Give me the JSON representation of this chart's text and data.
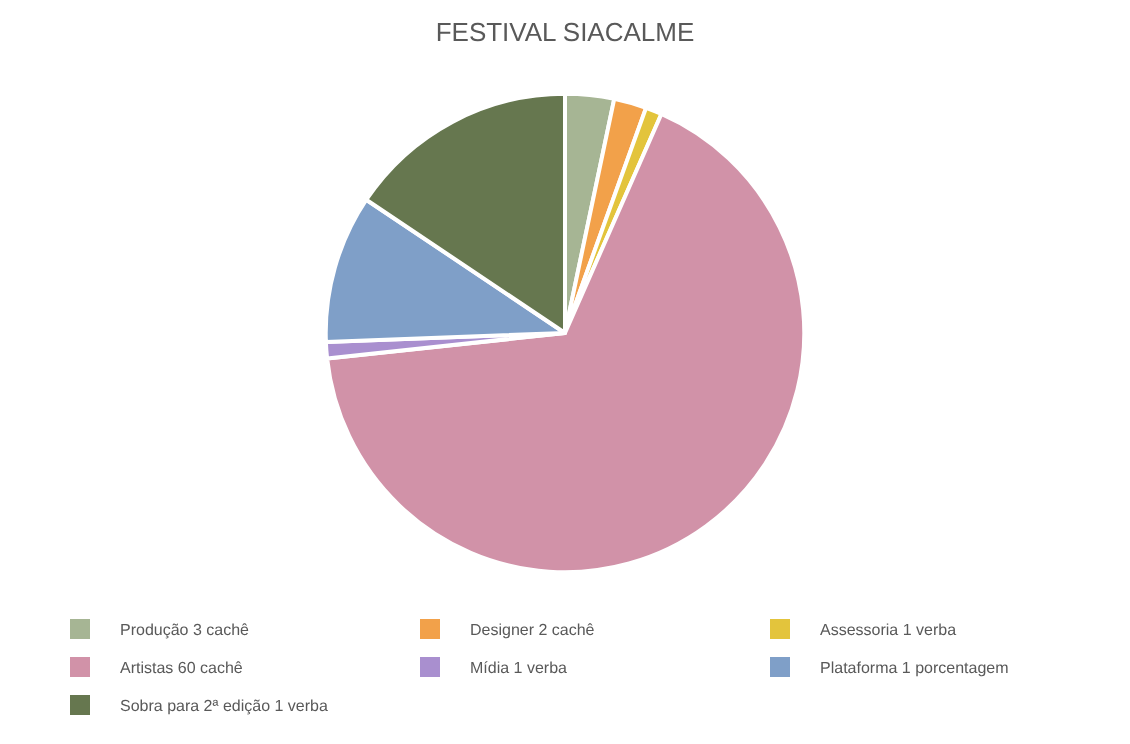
{
  "chart_data": {
    "type": "pie",
    "title": "FESTIVAL SIACALME",
    "categories": [
      "Produção 3 cachê",
      "Designer 2 cachê",
      "Assessoria 1 verba",
      "Artistas 60 cachê",
      "Mídia 1 verba",
      "Plataforma 1 porcentagem",
      "Sobra para 2ª edição 1 verba"
    ],
    "values": [
      3.3,
      2.2,
      1.1,
      66.7,
      1.1,
      10,
      15.6
    ],
    "colors": [
      "#a6b594",
      "#f2a14a",
      "#e3c43c",
      "#d192a8",
      "#a98fcf",
      "#7f9fc8",
      "#66774f"
    ],
    "legend": "bottom"
  }
}
